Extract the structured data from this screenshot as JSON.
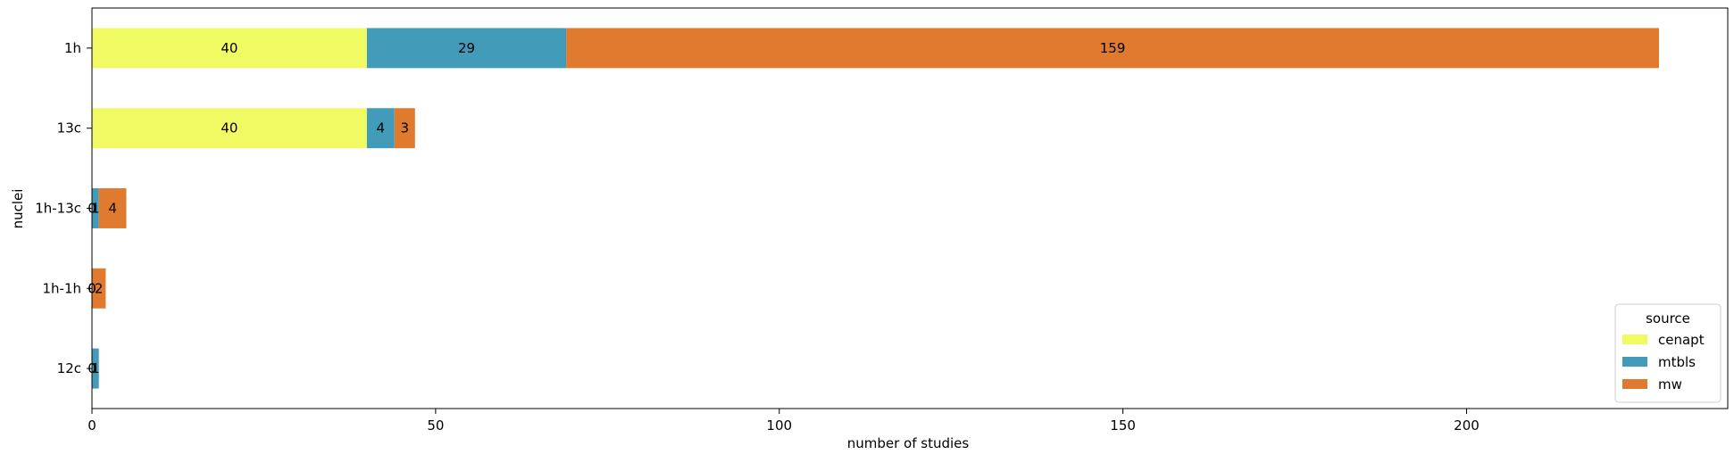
{
  "chart_data": {
    "type": "bar",
    "orientation": "horizontal",
    "stacked": true,
    "categories": [
      "1h",
      "13c",
      "1h-13c",
      "1h-1h",
      "12c"
    ],
    "series": [
      {
        "name": "cenapt",
        "color": "#f0fa62",
        "values": [
          40,
          40,
          0,
          0,
          0
        ]
      },
      {
        "name": "mtbls",
        "color": "#419bb9",
        "values": [
          29,
          4,
          1,
          0,
          1
        ]
      },
      {
        "name": "mw",
        "color": "#e07a2e",
        "values": [
          159,
          3,
          4,
          2,
          0
        ]
      }
    ],
    "data_labels": [
      [
        "40",
        "29",
        "159"
      ],
      [
        "40",
        "4",
        "3"
      ],
      [
        "0",
        "1",
        "4"
      ],
      [
        "0",
        "0",
        "2"
      ],
      [
        "0",
        "1",
        ""
      ]
    ],
    "xlabel": "number of studies",
    "ylabel": "nuclei",
    "xlim": [
      0,
      238
    ],
    "xticks": [
      0,
      50,
      100,
      150,
      200
    ],
    "grid": false,
    "legend": {
      "title": "source",
      "placement": "lower-right"
    }
  }
}
